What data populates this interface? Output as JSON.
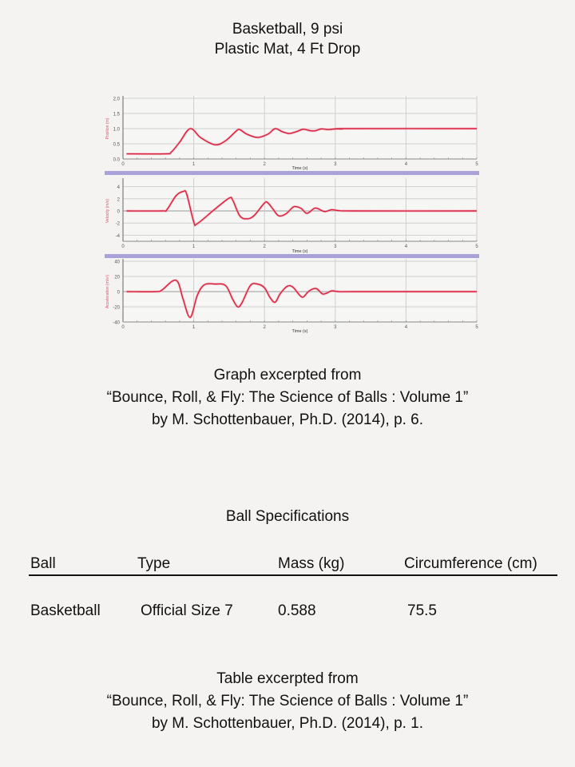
{
  "title": {
    "line1": "Basketball, 9 psi",
    "line2": "Plastic Mat, 4 Ft Drop"
  },
  "graph_caption": {
    "line1": "Graph excerpted from",
    "line2": "“Bounce, Roll, & Fly: The Science of Balls : Volume 1”",
    "line3": "by M. Schottenbauer, Ph.D. (2014),  p. 6."
  },
  "specs": {
    "title": "Ball Specifications",
    "headers": [
      "Ball",
      "Type",
      "Mass (kg)",
      "Circumference (cm)"
    ],
    "rows": [
      [
        "Basketball",
        "Official Size 7",
        "0.588",
        "75.5"
      ]
    ]
  },
  "table_caption": {
    "line1": "Table excerpted from",
    "line2": "“Bounce, Roll, & Fly: The Science of Balls : Volume 1”",
    "line3": "by M. Schottenbauer, Ph.D. (2014),  p. 1."
  },
  "colors": {
    "trace": "#d8203a",
    "trace_dark": "#3a0010",
    "separator": "#a9a2d8",
    "grid": "#cfcfcf",
    "axis_label": "#e0506a"
  },
  "chart_data": [
    {
      "type": "line",
      "title": "Position vs Time",
      "xlabel": "Time (s)",
      "ylabel": "Position (m)",
      "xlim": [
        0,
        5
      ],
      "ylim": [
        0,
        2
      ],
      "xticks": [
        0,
        1,
        2,
        3,
        4,
        5
      ],
      "yticks": [
        0.0,
        0.5,
        1.0,
        1.5,
        2.0
      ],
      "ytick_labels": [
        "0.0",
        "0.5",
        "1.0",
        "1.5",
        "2.0"
      ],
      "grid": true,
      "x": [
        0.05,
        0.6,
        0.68,
        0.8,
        0.95,
        1.1,
        1.3,
        1.45,
        1.6,
        1.65,
        1.75,
        1.9,
        2.05,
        2.15,
        2.25,
        2.35,
        2.45,
        2.55,
        2.65,
        2.72,
        2.8,
        2.9,
        3.0,
        3.1,
        3.15,
        5.0
      ],
      "y": [
        0.17,
        0.17,
        0.22,
        0.55,
        1.0,
        0.7,
        0.47,
        0.6,
        0.92,
        0.97,
        0.82,
        0.71,
        0.82,
        1.0,
        0.9,
        0.84,
        0.9,
        0.98,
        0.93,
        0.93,
        0.99,
        0.97,
        0.99,
        0.99,
        1.0,
        1.0
      ]
    },
    {
      "type": "line",
      "title": "Velocity vs Time",
      "xlabel": "Time (s)",
      "ylabel": "Velocity (m/s)",
      "xlim": [
        0,
        5
      ],
      "ylim": [
        -5,
        5
      ],
      "xticks": [
        0,
        1,
        2,
        3,
        4,
        5
      ],
      "yticks": [
        -4,
        -2,
        0,
        2,
        4
      ],
      "ytick_labels": [
        "-4",
        "-2",
        "0",
        "2",
        "4"
      ],
      "grid": true,
      "x": [
        0.05,
        0.55,
        0.62,
        0.75,
        0.85,
        0.9,
        1.0,
        1.05,
        1.3,
        1.5,
        1.55,
        1.65,
        1.75,
        1.85,
        2.0,
        2.05,
        2.12,
        2.2,
        2.3,
        2.4,
        2.45,
        2.52,
        2.6,
        2.7,
        2.75,
        2.85,
        2.95,
        3.05,
        3.3,
        5.0
      ],
      "y": [
        0,
        0,
        0.2,
        2.5,
        3.2,
        2.8,
        -1.8,
        -2.1,
        0.3,
        2.1,
        1.8,
        -0.8,
        -1.3,
        -0.8,
        1.3,
        1.3,
        0.3,
        -0.8,
        -0.5,
        0.6,
        0.7,
        0.4,
        -0.4,
        0.4,
        0.4,
        -0.1,
        0.2,
        0.05,
        0,
        0
      ]
    },
    {
      "type": "line",
      "title": "Acceleration vs Time",
      "xlabel": "Time (s)",
      "ylabel": "Acceleration (m/s²)",
      "xlim": [
        0,
        5
      ],
      "ylim": [
        -40,
        40
      ],
      "xticks": [
        0,
        1,
        2,
        3,
        4,
        5
      ],
      "yticks": [
        -40,
        -20,
        0,
        20,
        40
      ],
      "ytick_labels": [
        "-40",
        "-20",
        "0",
        "20",
        "40"
      ],
      "grid": true,
      "x": [
        0.05,
        0.45,
        0.55,
        0.7,
        0.78,
        0.85,
        0.95,
        1.05,
        1.15,
        1.3,
        1.45,
        1.55,
        1.62,
        1.68,
        1.8,
        1.9,
        2.0,
        2.08,
        2.15,
        2.22,
        2.32,
        2.4,
        2.5,
        2.55,
        2.62,
        2.7,
        2.75,
        2.82,
        2.88,
        2.95,
        3.05,
        3.3,
        5.0
      ],
      "y": [
        0,
        0,
        2,
        14,
        12,
        -10,
        -34,
        -5,
        9,
        10,
        8,
        -10,
        -20,
        -15,
        8,
        10,
        5,
        -8,
        -14,
        -3,
        7,
        6,
        -5,
        -7,
        0,
        4,
        3,
        -3,
        -2,
        1,
        0,
        0,
        0
      ]
    }
  ]
}
